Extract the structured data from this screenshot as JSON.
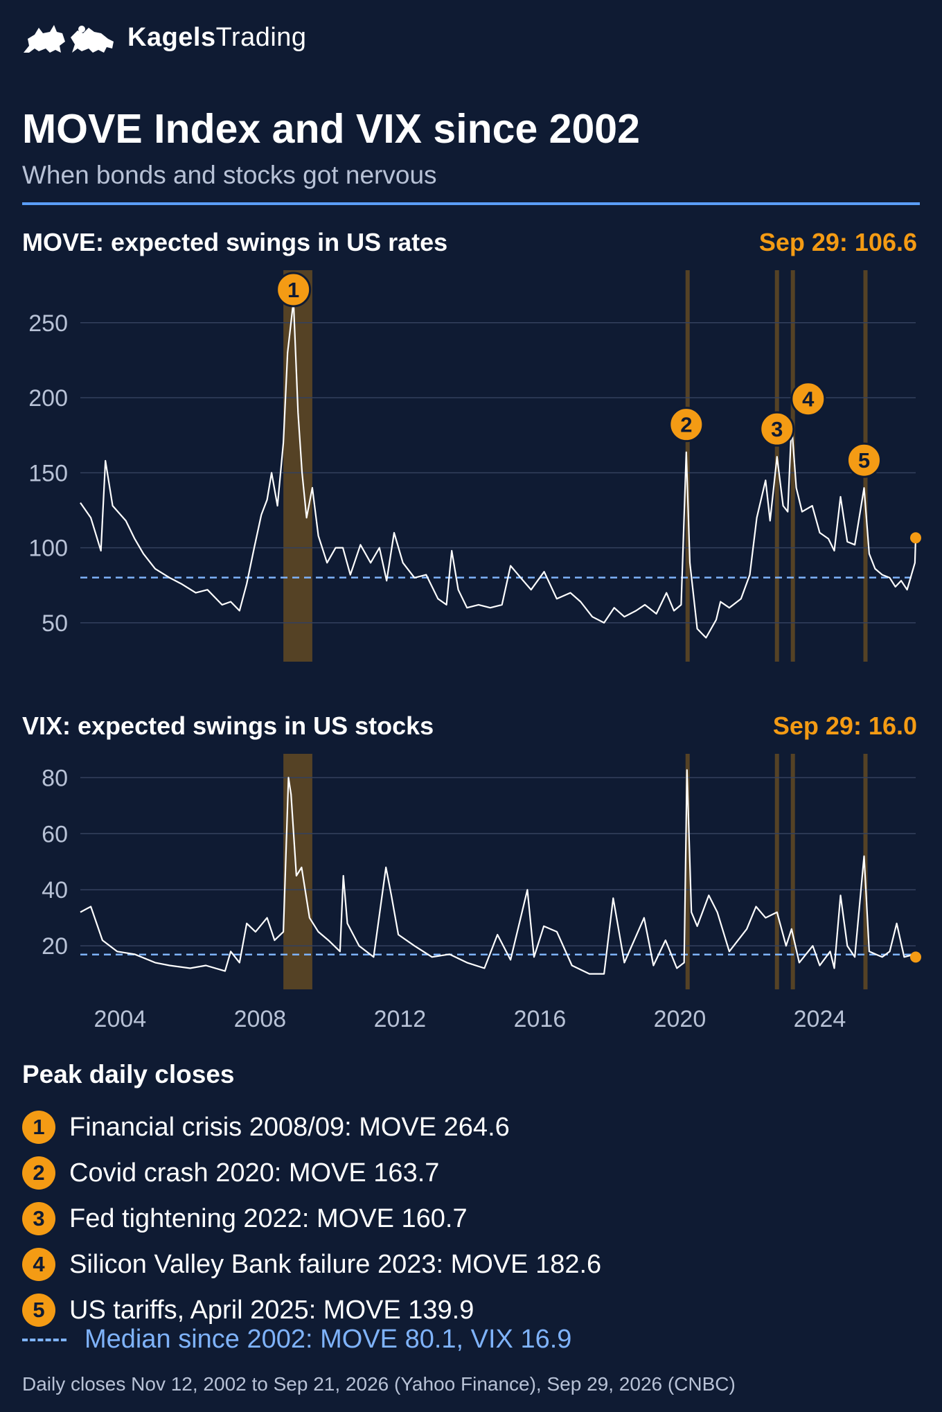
{
  "brand": {
    "name_bold": "Kagels",
    "name_light": "Trading"
  },
  "title": "MOVE Index and VIX since 2002",
  "subtitle": "When bonds and stocks got nervous",
  "colors": {
    "background": "#0f1b33",
    "accent": "#f49b14",
    "median": "#7fb3fb",
    "rule": "#5b9ef7",
    "shade": "#5a4525",
    "line": "#ffffff"
  },
  "icons": [
    "bull-bear-logo-icon"
  ],
  "chart_data": [
    {
      "type": "line",
      "title": "MOVE: expected swings in US rates",
      "latest_label": "Sep 29: 106.6",
      "latest": {
        "x": "2026-09-29",
        "y": 106.6
      },
      "median": 80.1,
      "xlim": [
        "2002-11-12",
        "2026-09-29"
      ],
      "ylim": [
        25,
        285
      ],
      "yticks": [
        "50",
        "100",
        "150",
        "200",
        "250"
      ],
      "grid": true,
      "shaded_periods": [
        [
          "2008-09-01",
          "2009-06-30"
        ],
        [
          "2020-03-01",
          "2020-03-31"
        ],
        [
          "2022-09-20",
          "2022-10-31"
        ],
        [
          "2023-03-05",
          "2023-03-25"
        ],
        [
          "2025-04-01",
          "2025-04-20"
        ]
      ],
      "markers": [
        {
          "label": "1",
          "x": "2008-12-15",
          "y": 264.6
        },
        {
          "label": "2",
          "x": "2020-03-09",
          "y": 163.7
        },
        {
          "label": "3",
          "x": "2022-10-12",
          "y": 160.7
        },
        {
          "label": "4",
          "x": "2023-03-13",
          "y": 182.6
        },
        {
          "label": "5",
          "x": "2025-04-08",
          "y": 139.9
        }
      ],
      "series": [
        {
          "x": [
            "2002-11-12",
            "2003-03-01",
            "2003-06-15",
            "2003-08-01",
            "2003-10-15",
            "2004-03-01",
            "2004-06-01",
            "2004-09-01",
            "2005-01-01",
            "2005-06-01",
            "2005-10-01",
            "2006-03-01",
            "2006-07-01",
            "2006-12-01",
            "2007-03-01",
            "2007-06-01",
            "2007-08-15",
            "2007-11-01",
            "2008-01-15",
            "2008-03-15",
            "2008-05-01",
            "2008-07-01",
            "2008-09-01",
            "2008-10-15",
            "2008-12-15",
            "2009-02-01",
            "2009-03-15",
            "2009-05-01",
            "2009-06-30",
            "2009-09-01",
            "2009-12-01",
            "2010-03-01",
            "2010-05-15",
            "2010-08-01",
            "2010-11-15",
            "2011-03-01",
            "2011-06-01",
            "2011-08-15",
            "2011-11-01",
            "2012-02-01",
            "2012-06-01",
            "2012-10-01",
            "2013-02-01",
            "2013-05-01",
            "2013-06-25",
            "2013-09-01",
            "2013-12-01",
            "2014-04-01",
            "2014-08-01",
            "2014-12-01",
            "2015-03-01",
            "2015-06-15",
            "2015-10-01",
            "2016-02-15",
            "2016-06-25",
            "2016-11-15",
            "2017-03-01",
            "2017-07-01",
            "2017-11-01",
            "2018-02-15",
            "2018-06-01",
            "2018-10-01",
            "2019-01-01",
            "2019-05-01",
            "2019-08-15",
            "2019-11-01",
            "2020-01-15",
            "2020-03-09",
            "2020-04-15",
            "2020-07-01",
            "2020-10-01",
            "2021-01-15",
            "2021-03-01",
            "2021-06-01",
            "2021-10-01",
            "2022-01-01",
            "2022-03-15",
            "2022-06-15",
            "2022-08-01",
            "2022-10-12",
            "2022-12-15",
            "2023-02-01",
            "2023-03-13",
            "2023-05-01",
            "2023-07-01",
            "2023-10-15",
            "2024-01-01",
            "2024-04-01",
            "2024-06-01",
            "2024-08-05",
            "2024-10-15",
            "2025-01-01",
            "2025-04-08",
            "2025-06-01",
            "2025-08-01",
            "2025-10-15",
            "2026-01-01",
            "2026-03-01",
            "2026-05-01",
            "2026-07-01",
            "2026-09-21",
            "2026-09-29"
          ],
          "y": [
            130,
            120,
            98,
            158,
            128,
            118,
            106,
            96,
            86,
            80,
            76,
            70,
            72,
            62,
            64,
            58,
            76,
            100,
            122,
            132,
            150,
            128,
            170,
            230,
            264.6,
            190,
            150,
            120,
            140,
            108,
            90,
            100,
            100,
            82,
            102,
            90,
            100,
            78,
            110,
            90,
            80,
            82,
            66,
            62,
            98,
            72,
            60,
            62,
            60,
            62,
            88,
            80,
            72,
            84,
            66,
            70,
            64,
            54,
            50,
            60,
            54,
            58,
            62,
            56,
            70,
            58,
            62,
            163.7,
            90,
            46,
            40,
            52,
            64,
            60,
            66,
            82,
            120,
            145,
            118,
            160.7,
            128,
            124,
            182.6,
            140,
            124,
            128,
            110,
            106,
            98,
            134,
            104,
            102,
            139.9,
            96,
            86,
            82,
            80,
            74,
            78,
            72,
            90,
            106.6
          ]
        }
      ]
    },
    {
      "type": "line",
      "title": "VIX: expected swings in US stocks",
      "latest_label": "Sep 29: 16.0",
      "latest": {
        "x": "2026-09-29",
        "y": 16.0
      },
      "median": 16.9,
      "xlim": [
        "2002-11-12",
        "2026-09-29"
      ],
      "ylim": [
        2,
        88
      ],
      "yticks": [
        "20",
        "40",
        "60",
        "80"
      ],
      "xticks": [
        "2004",
        "2008",
        "2012",
        "2016",
        "2020",
        "2024"
      ],
      "grid": true,
      "series": [
        {
          "x": [
            "2002-11-12",
            "2003-03-01",
            "2003-07-01",
            "2003-12-01",
            "2004-06-01",
            "2005-01-01",
            "2005-06-01",
            "2006-01-01",
            "2006-06-15",
            "2007-01-01",
            "2007-03-01",
            "2007-06-01",
            "2007-08-15",
            "2007-11-15",
            "2008-03-15",
            "2008-06-01",
            "2008-09-01",
            "2008-10-24",
            "2008-11-20",
            "2009-01-15",
            "2009-03-10",
            "2009-06-01",
            "2009-09-01",
            "2009-12-15",
            "2010-04-15",
            "2010-05-20",
            "2010-07-01",
            "2010-11-01",
            "2011-04-01",
            "2011-08-08",
            "2011-10-03",
            "2011-12-15",
            "2012-06-01",
            "2012-12-01",
            "2013-06-01",
            "2013-12-01",
            "2014-06-01",
            "2014-10-15",
            "2015-03-01",
            "2015-08-24",
            "2015-11-01",
            "2016-02-11",
            "2016-06-27",
            "2016-12-01",
            "2017-06-01",
            "2017-11-01",
            "2018-02-05",
            "2018-06-01",
            "2018-12-24",
            "2019-04-01",
            "2019-08-05",
            "2019-12-01",
            "2020-02-15",
            "2020-03-16",
            "2020-05-01",
            "2020-07-01",
            "2020-10-30",
            "2021-01-27",
            "2021-06-01",
            "2021-11-30",
            "2022-03-07",
            "2022-06-15",
            "2022-10-12",
            "2023-01-15",
            "2023-03-13",
            "2023-06-01",
            "2023-10-20",
            "2024-01-01",
            "2024-04-19",
            "2024-06-01",
            "2024-08-05",
            "2024-10-15",
            "2025-01-01",
            "2025-04-08",
            "2025-06-01",
            "2025-10-15",
            "2026-01-01",
            "2026-03-15",
            "2026-06-01",
            "2026-09-21",
            "2026-09-29"
          ],
          "y": [
            32,
            34,
            22,
            18,
            17,
            14,
            13,
            12,
            13,
            11,
            18,
            14,
            28,
            25,
            30,
            22,
            25,
            80,
            74,
            45,
            48,
            30,
            25,
            22,
            18,
            45,
            28,
            20,
            16,
            48,
            38,
            24,
            20,
            16,
            17,
            14,
            12,
            24,
            15,
            40,
            16,
            27,
            25,
            13,
            10,
            10,
            37,
            14,
            30,
            13,
            22,
            12,
            14,
            82.7,
            32,
            27,
            38,
            32,
            18,
            26,
            34,
            30,
            32,
            20,
            26,
            14,
            20,
            13,
            18,
            12,
            38,
            20,
            16,
            52,
            18,
            16,
            18,
            28,
            16,
            17,
            16
          ]
        }
      ]
    }
  ],
  "peaks": {
    "title": "Peak daily closes",
    "items": [
      {
        "num": "1",
        "text": "Financial crisis 2008/09: MOVE 264.6"
      },
      {
        "num": "2",
        "text": "Covid crash 2020: MOVE 163.7"
      },
      {
        "num": "3",
        "text": "Fed tightening 2022: MOVE 160.7"
      },
      {
        "num": "4",
        "text": "Silicon Valley Bank failure 2023: MOVE 182.6"
      },
      {
        "num": "5",
        "text": "US tariffs, April 2025: MOVE 139.9"
      }
    ],
    "median_text": "Median since 2002: MOVE 80.1, VIX 16.9"
  },
  "footnote": "Daily closes Nov 12, 2002 to Sep 21, 2026 (Yahoo Finance), Sep 29, 2026 (CNBC)"
}
